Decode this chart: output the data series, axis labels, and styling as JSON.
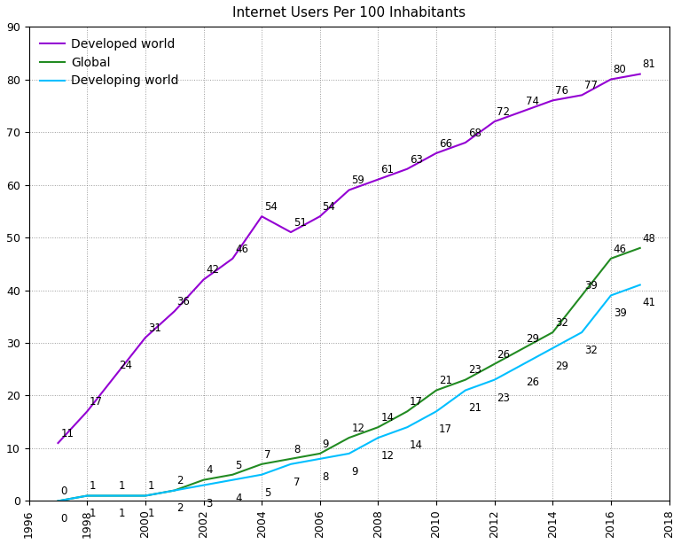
{
  "title": "Internet Users Per 100 Inhabitants",
  "years": [
    1997,
    1998,
    1999,
    2000,
    2001,
    2002,
    2003,
    2004,
    2005,
    2006,
    2007,
    2008,
    2009,
    2010,
    2011,
    2012,
    2013,
    2014,
    2015,
    2016,
    2017
  ],
  "developed": [
    11,
    17,
    24,
    31,
    36,
    42,
    46,
    54,
    51,
    54,
    59,
    61,
    63,
    66,
    68,
    72,
    74,
    76,
    77,
    80,
    81
  ],
  "global_vals": [
    0,
    1,
    1,
    1,
    2,
    4,
    5,
    7,
    8,
    9,
    12,
    14,
    17,
    21,
    23,
    26,
    29,
    32,
    39,
    46,
    48
  ],
  "developing_vals": [
    0,
    1,
    1,
    1,
    2,
    3,
    4,
    5,
    7,
    8,
    9,
    12,
    14,
    17,
    21,
    23,
    26,
    29,
    32,
    39,
    41
  ],
  "developed_color": "#9400D3",
  "global_color": "#228B22",
  "developing_color": "#00BFFF",
  "xlim": [
    1996,
    2018
  ],
  "ylim": [
    0,
    90
  ],
  "xticks": [
    1996,
    1998,
    2000,
    2002,
    2004,
    2006,
    2008,
    2010,
    2012,
    2014,
    2016,
    2018
  ],
  "yticks": [
    0,
    10,
    20,
    30,
    40,
    50,
    60,
    70,
    80,
    90
  ],
  "legend_labels": [
    "Developed world",
    "Global",
    "Developing world"
  ],
  "background_color": "#ffffff",
  "label_fontsize": 8.5,
  "title_fontsize": 11,
  "linewidth": 1.5
}
